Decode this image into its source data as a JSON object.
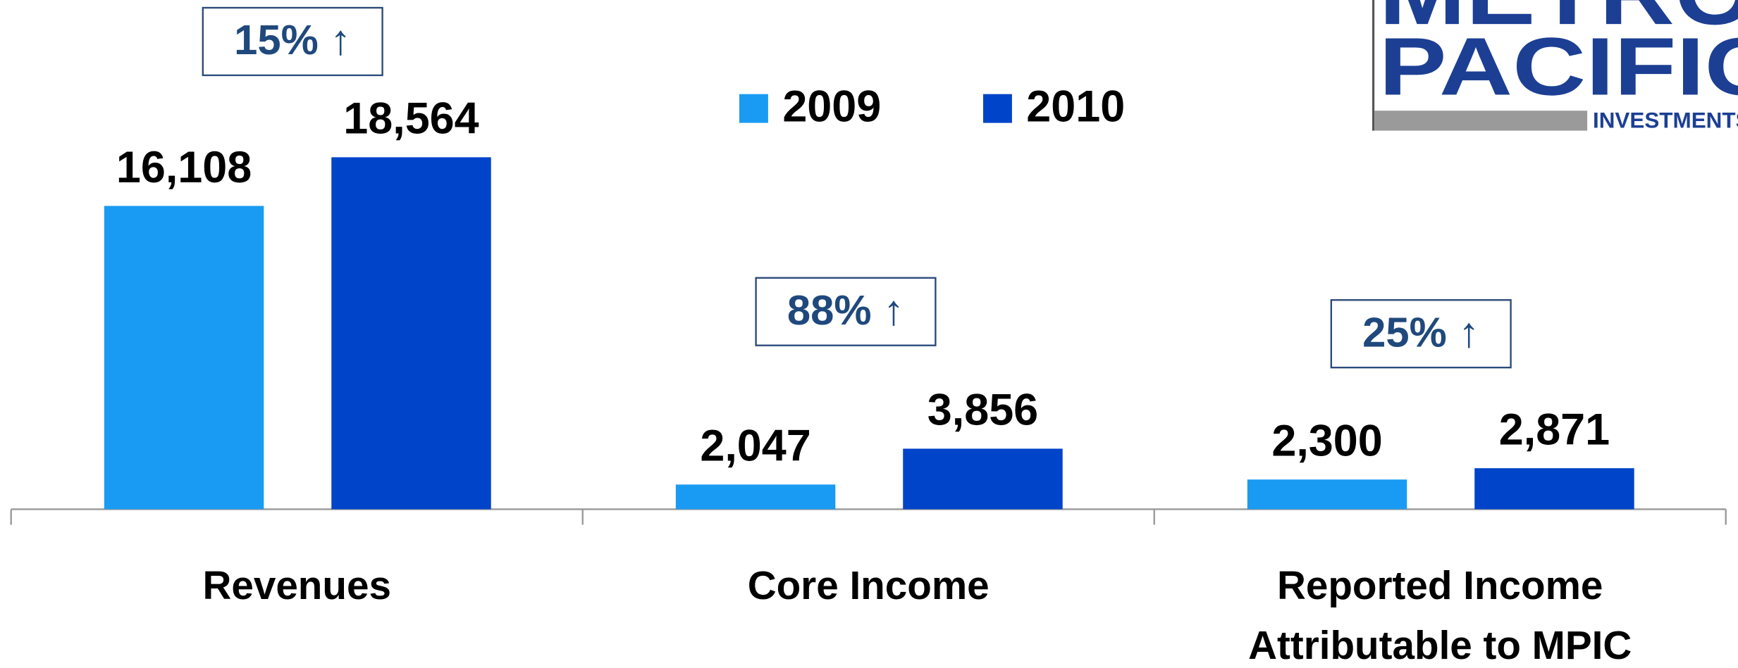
{
  "chart_data": {
    "type": "bar",
    "categories": [
      "Revenues",
      "Core Income",
      "Reported Income Attributable to MPIC"
    ],
    "series": [
      {
        "name": "2009",
        "color": "#1a9bf3",
        "values": [
          16108,
          2047,
          2300
        ],
        "value_labels": [
          "16,108",
          "2,047",
          "2,300"
        ]
      },
      {
        "name": "2010",
        "color": "#0044c9",
        "values": [
          18564,
          3856,
          2871
        ],
        "value_labels": [
          "18,564",
          "3,856",
          "2,871"
        ]
      }
    ],
    "annotations": [
      "15% ↑",
      "88% ↑",
      "25% ↑"
    ],
    "ylim": [
      800,
      26500
    ],
    "legend": "top",
    "logo": [
      "METRO",
      "PACIFIC",
      "INVESTMENTS"
    ]
  }
}
